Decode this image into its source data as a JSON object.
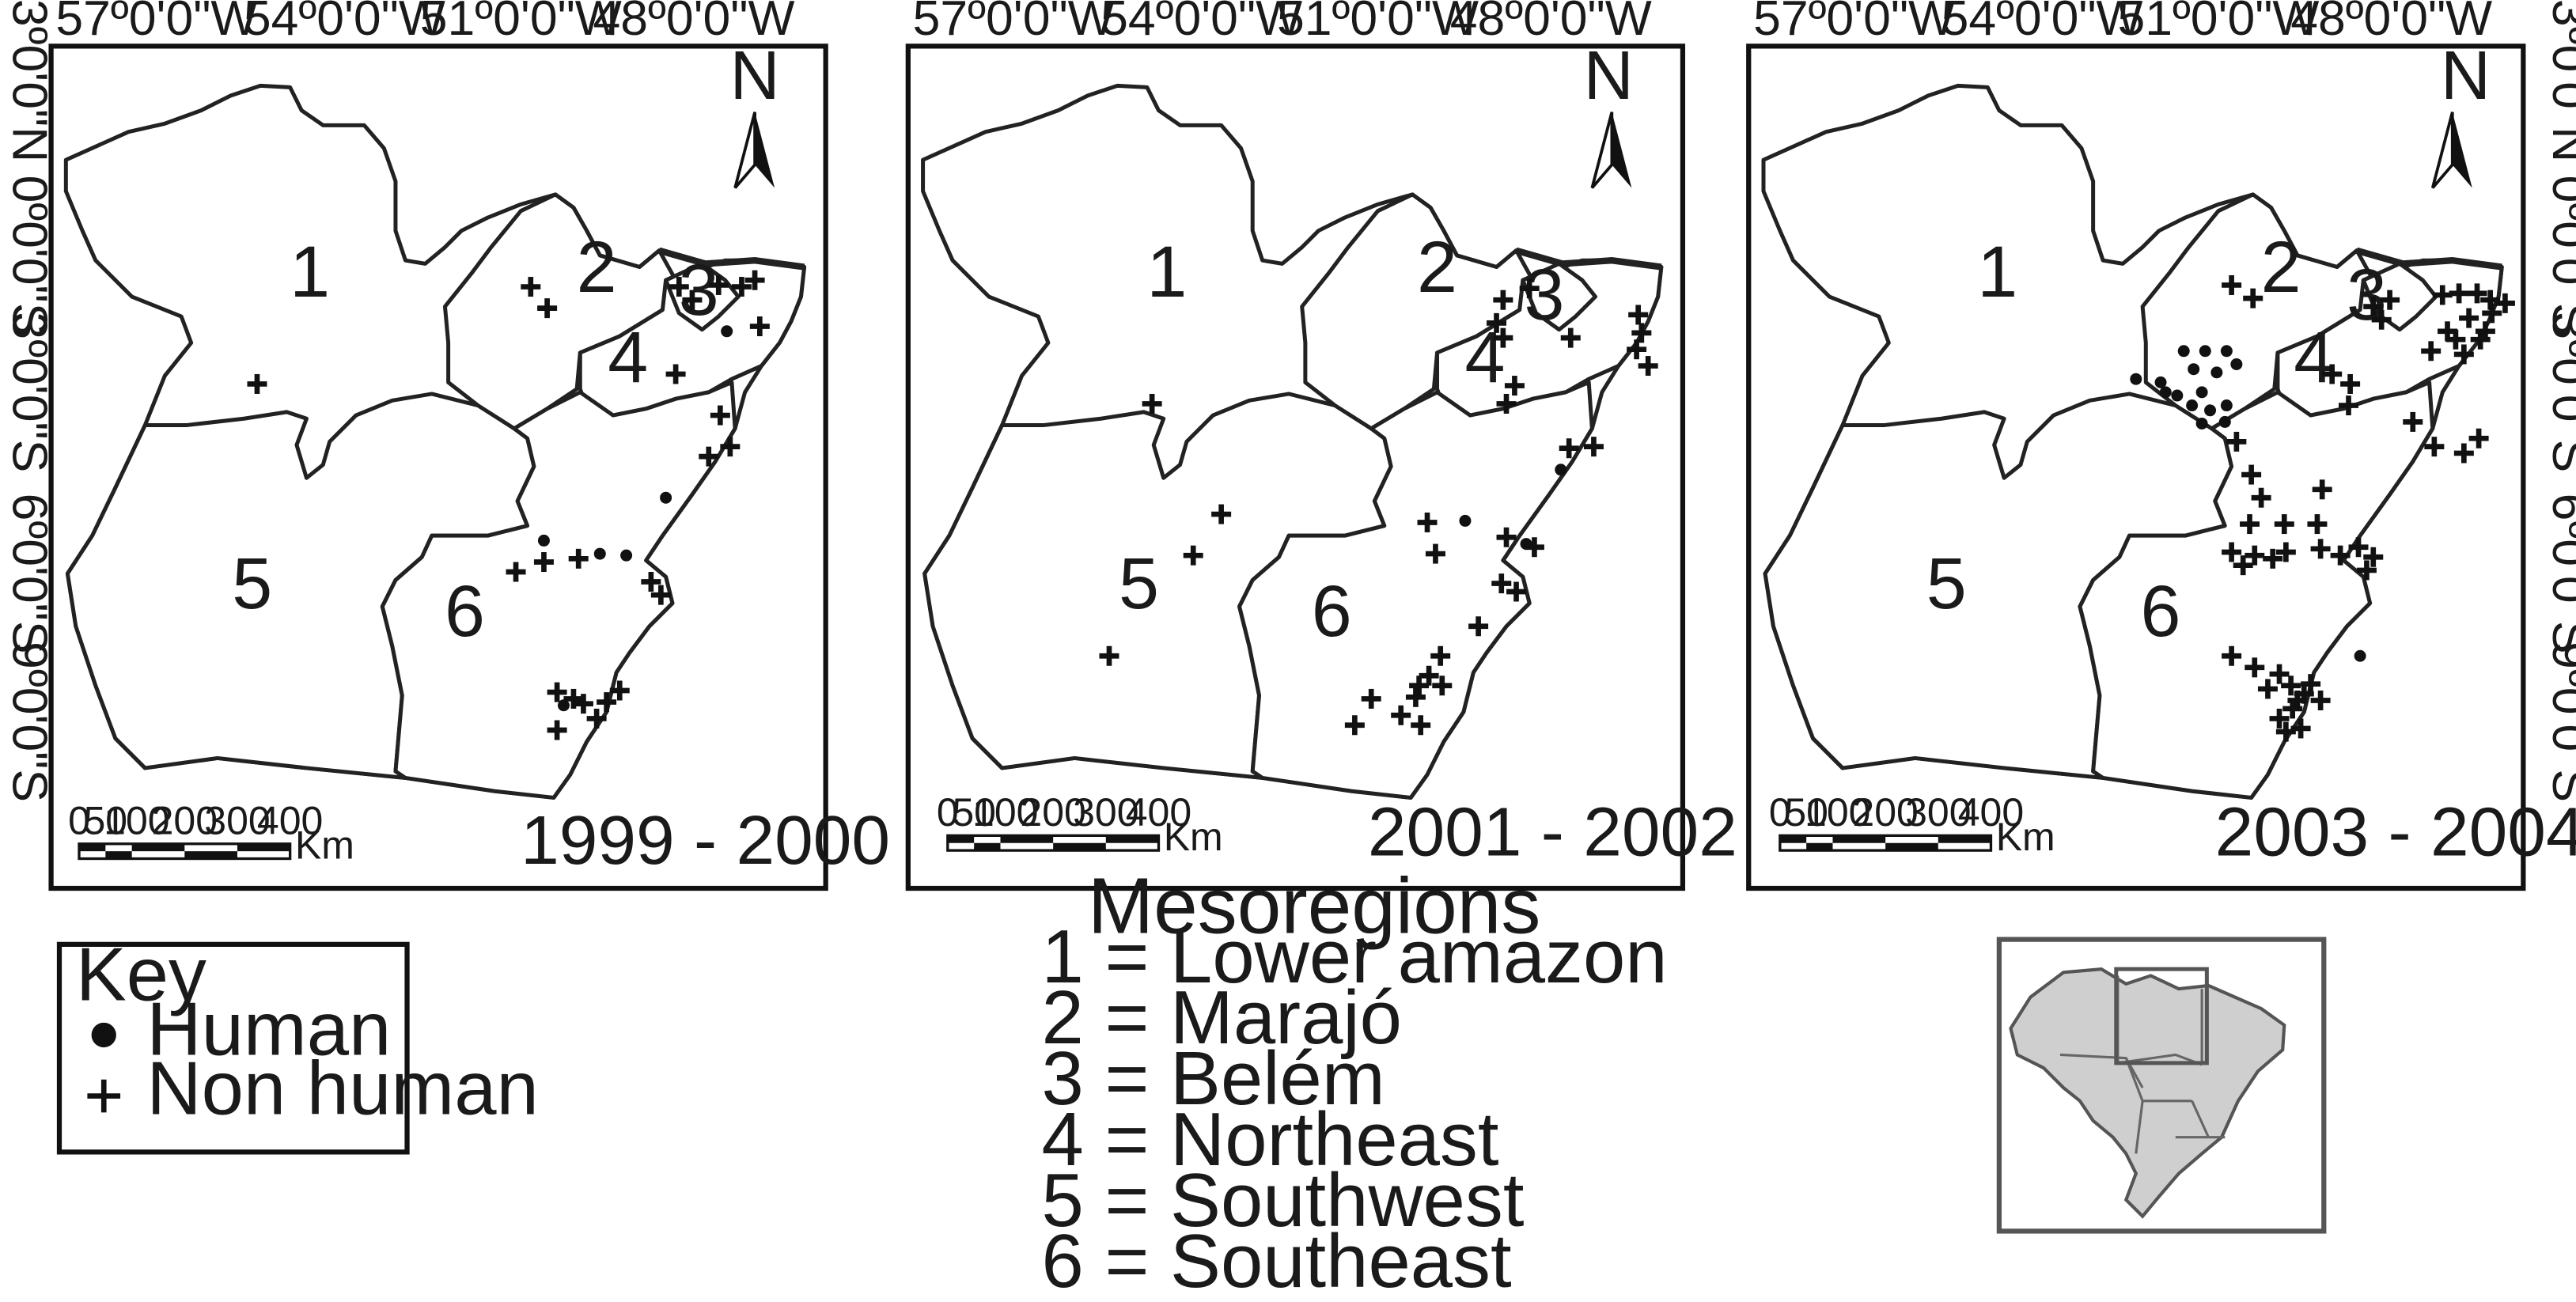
{
  "axes": {
    "longitudes": [
      "57º0'0\"W",
      "54º0'0\"W",
      "51º0'0\"W",
      "48º0'0\"W"
    ],
    "latitudes": [
      "3º0'0\"N",
      "0º0'0\"S",
      "3º0'0\"S",
      "6º0'0\"S",
      "9º0'0\"S"
    ]
  },
  "north_label": "N",
  "scale": {
    "ticks": [
      "0",
      "50",
      "100",
      "200",
      "300",
      "400"
    ],
    "unit": "Km"
  },
  "regions": [
    "1",
    "2",
    "3",
    "4",
    "5",
    "6"
  ],
  "panels": [
    {
      "period": "1999 - 2000",
      "human": [
        [
          441,
          201
        ],
        [
          404,
          302
        ],
        [
          330,
          328
        ],
        [
          364,
          336
        ],
        [
          380,
          337
        ],
        [
          342,
          428
        ]
      ],
      "non_human": [
        [
          322,
          174
        ],
        [
          332,
          187
        ],
        [
          412,
          174
        ],
        [
          420,
          182
        ],
        [
          436,
          173
        ],
        [
          450,
          174
        ],
        [
          458,
          170
        ],
        [
          461,
          198
        ],
        [
          410,
          227
        ],
        [
          437,
          252
        ],
        [
          443,
          271
        ],
        [
          430,
          277
        ],
        [
          313,
          347
        ],
        [
          330,
          341
        ],
        [
          351,
          339
        ],
        [
          395,
          353
        ],
        [
          401,
          361
        ],
        [
          338,
          420
        ],
        [
          348,
          424
        ],
        [
          354,
          427
        ],
        [
          368,
          426
        ],
        [
          376,
          419
        ],
        [
          362,
          436
        ],
        [
          338,
          443
        ],
        [
          156,
          233
        ]
      ]
    },
    {
      "period": "2001 - 2002",
      "human": [
        [
          889,
          316
        ],
        [
          926,
          330
        ],
        [
          947,
          285
        ]
      ],
      "non_human": [
        [
          912,
          182
        ],
        [
          928,
          175
        ],
        [
          908,
          196
        ],
        [
          912,
          205
        ],
        [
          953,
          205
        ],
        [
          994,
          191
        ],
        [
          996,
          202
        ],
        [
          993,
          212
        ],
        [
          1000,
          222
        ],
        [
          919,
          234
        ],
        [
          914,
          245
        ],
        [
          952,
          272
        ],
        [
          967,
          271
        ],
        [
          866,
          317
        ],
        [
          914,
          326
        ],
        [
          871,
          336
        ],
        [
          931,
          332
        ],
        [
          911,
          354
        ],
        [
          920,
          359
        ],
        [
          897,
          380
        ],
        [
          874,
          398
        ],
        [
          867,
          410
        ],
        [
          875,
          416
        ],
        [
          861,
          416
        ],
        [
          859,
          423
        ],
        [
          832,
          424
        ],
        [
          850,
          434
        ],
        [
          862,
          440
        ],
        [
          822,
          440
        ],
        [
          699,
          245
        ],
        [
          741,
          312
        ],
        [
          724,
          337
        ],
        [
          673,
          398
        ]
      ]
    },
    {
      "period": "2003 - 2004",
      "human": [
        [
          1325,
          213
        ],
        [
          1338,
          213
        ],
        [
          1351,
          213
        ],
        [
          1331,
          224
        ],
        [
          1345,
          226
        ],
        [
          1357,
          221
        ],
        [
          1296,
          230
        ],
        [
          1311,
          232
        ],
        [
          1321,
          240
        ],
        [
          1336,
          238
        ],
        [
          1351,
          246
        ],
        [
          1314,
          238
        ],
        [
          1330,
          246
        ],
        [
          1341,
          249
        ],
        [
          1336,
          257
        ],
        [
          1350,
          256
        ],
        [
          1432,
          398
        ]
      ],
      "non_human": [
        [
          1354,
          173
        ],
        [
          1367,
          181
        ],
        [
          1440,
          186
        ],
        [
          1450,
          182
        ],
        [
          1445,
          194
        ],
        [
          1482,
          179
        ],
        [
          1492,
          178
        ],
        [
          1503,
          178
        ],
        [
          1511,
          182
        ],
        [
          1512,
          190
        ],
        [
          1498,
          193
        ],
        [
          1485,
          201
        ],
        [
          1475,
          213
        ],
        [
          1490,
          206
        ],
        [
          1505,
          206
        ],
        [
          1508,
          201
        ],
        [
          1495,
          215
        ],
        [
          1520,
          184
        ],
        [
          1415,
          227
        ],
        [
          1426,
          233
        ],
        [
          1425,
          246
        ],
        [
          1464,
          256
        ],
        [
          1477,
          271
        ],
        [
          1495,
          275
        ],
        [
          1504,
          266
        ],
        [
          1357,
          268
        ],
        [
          1366,
          288
        ],
        [
          1372,
          302
        ],
        [
          1409,
          297
        ],
        [
          1365,
          318
        ],
        [
          1386,
          318
        ],
        [
          1406,
          318
        ],
        [
          1354,
          335
        ],
        [
          1368,
          337
        ],
        [
          1387,
          335
        ],
        [
          1408,
          333
        ],
        [
          1361,
          343
        ],
        [
          1379,
          339
        ],
        [
          1420,
          337
        ],
        [
          1431,
          332
        ],
        [
          1440,
          338
        ],
        [
          1436,
          346
        ],
        [
          1354,
          398
        ],
        [
          1368,
          405
        ],
        [
          1383,
          409
        ],
        [
          1376,
          418
        ],
        [
          1390,
          416
        ],
        [
          1398,
          421
        ],
        [
          1408,
          425
        ],
        [
          1394,
          425
        ],
        [
          1402,
          415
        ],
        [
          1391,
          430
        ],
        [
          1383,
          436
        ],
        [
          1396,
          442
        ],
        [
          1387,
          444
        ]
      ]
    }
  ],
  "legend": {
    "title": "Key",
    "items": [
      {
        "label": "Human",
        "symbol": "filled-circle"
      },
      {
        "label": "Non human",
        "symbol": "plus"
      }
    ]
  },
  "mesoregions": {
    "title": "Mesoregions",
    "items": [
      "1 = Lower amazon",
      "2 = Marajó",
      "3 = Belém",
      "4 = Northeast",
      "5 = Southwest",
      "6 = Southeast"
    ]
  }
}
